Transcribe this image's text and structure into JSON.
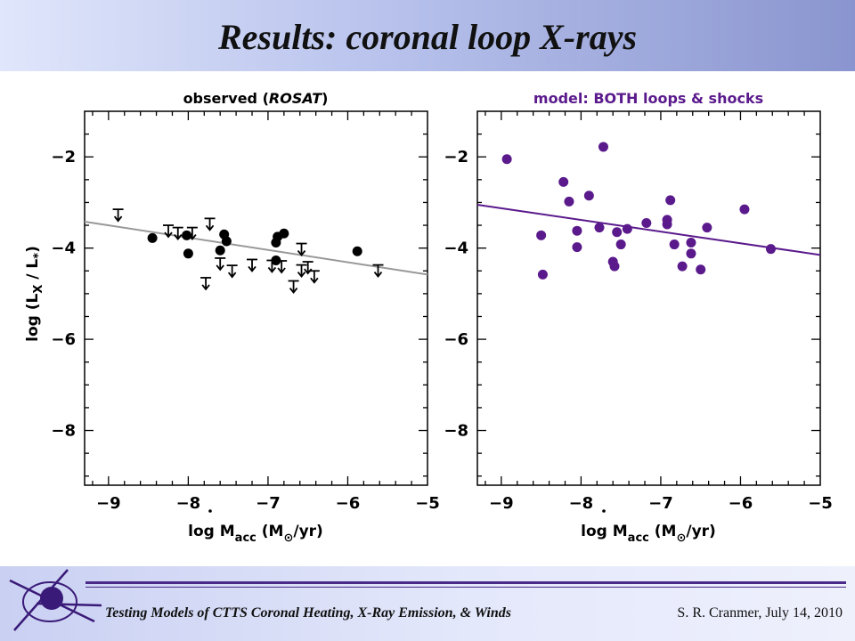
{
  "slide": {
    "title": "Results:  coronal loop X-rays",
    "footer_left": "Testing Models of CTTS Coronal Heating, X-Ray Emission, & Winds",
    "footer_right": "S. R. Cranmer, July 14, 2010",
    "logo_icon": "star-burst-logo-icon"
  },
  "chart_data": [
    {
      "type": "scatter",
      "title": "observed (ROSAT)",
      "title_main": "observed (",
      "title_italic": "ROSAT",
      "title_close": ")",
      "xlabel": "log Ṁacc (M⊙/yr)",
      "ylabel": "log (LX / L*)",
      "xlim": [
        -9.3,
        -5
      ],
      "ylim": [
        -9.2,
        -1
      ],
      "xticks": [
        -9,
        -8,
        -7,
        -6,
        -5
      ],
      "yticks": [
        -8,
        -6,
        -4,
        -2
      ],
      "xtick_labels": [
        "−9",
        "−8",
        "−7",
        "−6",
        "−5"
      ],
      "ytick_labels": [
        "−8",
        "−6",
        "−4",
        "−2"
      ],
      "color": "#000000",
      "fit_color": "#999999",
      "fit_line": {
        "x": [
          -9.3,
          -5
        ],
        "y": [
          -3.42,
          -4.58
        ]
      },
      "points": [
        {
          "x": -8.45,
          "y": -3.78
        },
        {
          "x": -8.02,
          "y": -3.72
        },
        {
          "x": -8.0,
          "y": -4.12
        },
        {
          "x": -7.55,
          "y": -3.7
        },
        {
          "x": -7.52,
          "y": -3.85
        },
        {
          "x": -7.6,
          "y": -4.05
        },
        {
          "x": -6.88,
          "y": -3.75
        },
        {
          "x": -6.9,
          "y": -3.88
        },
        {
          "x": -6.8,
          "y": -3.68
        },
        {
          "x": -6.9,
          "y": -4.27
        },
        {
          "x": -5.88,
          "y": -4.07
        }
      ],
      "upper_limits": [
        {
          "x": -8.88,
          "y": -3.15
        },
        {
          "x": -8.25,
          "y": -3.5
        },
        {
          "x": -8.13,
          "y": -3.55
        },
        {
          "x": -7.95,
          "y": -3.55
        },
        {
          "x": -7.73,
          "y": -3.35
        },
        {
          "x": -7.78,
          "y": -4.65
        },
        {
          "x": -7.6,
          "y": -4.22
        },
        {
          "x": -7.45,
          "y": -4.38
        },
        {
          "x": -7.2,
          "y": -4.25
        },
        {
          "x": -6.95,
          "y": -4.27
        },
        {
          "x": -6.83,
          "y": -4.28
        },
        {
          "x": -6.68,
          "y": -4.72
        },
        {
          "x": -6.58,
          "y": -3.9
        },
        {
          "x": -6.5,
          "y": -4.3
        },
        {
          "x": -6.58,
          "y": -4.37
        },
        {
          "x": -6.42,
          "y": -4.5
        },
        {
          "x": -5.62,
          "y": -4.37
        }
      ]
    },
    {
      "type": "scatter",
      "title": "model: BOTH loops & shocks",
      "xlabel": "log Ṁacc (M⊙/yr)",
      "ylabel": "",
      "xlim": [
        -9.3,
        -5
      ],
      "ylim": [
        -9.2,
        -1
      ],
      "xticks": [
        -9,
        -8,
        -7,
        -6,
        -5
      ],
      "yticks": [
        -8,
        -6,
        -4,
        -2
      ],
      "xtick_labels": [
        "−9",
        "−8",
        "−7",
        "−6",
        "−5"
      ],
      "ytick_labels": [
        "−8",
        "−6",
        "−4",
        "−2"
      ],
      "color": "#5a1a8c",
      "fit_color": "#5a1a8c",
      "fit_line": {
        "x": [
          -9.3,
          -5
        ],
        "y": [
          -3.05,
          -4.15
        ]
      },
      "points": [
        {
          "x": -8.93,
          "y": -2.05
        },
        {
          "x": -8.5,
          "y": -3.72
        },
        {
          "x": -8.48,
          "y": -4.58
        },
        {
          "x": -8.22,
          "y": -2.55
        },
        {
          "x": -8.15,
          "y": -2.98
        },
        {
          "x": -8.05,
          "y": -3.62
        },
        {
          "x": -8.05,
          "y": -3.98
        },
        {
          "x": -7.9,
          "y": -2.85
        },
        {
          "x": -7.72,
          "y": -1.78
        },
        {
          "x": -7.77,
          "y": -3.55
        },
        {
          "x": -7.6,
          "y": -4.3
        },
        {
          "x": -7.58,
          "y": -4.4
        },
        {
          "x": -7.55,
          "y": -3.65
        },
        {
          "x": -7.5,
          "y": -3.92
        },
        {
          "x": -7.42,
          "y": -3.58
        },
        {
          "x": -7.18,
          "y": -3.45
        },
        {
          "x": -6.92,
          "y": -3.38
        },
        {
          "x": -6.92,
          "y": -3.48
        },
        {
          "x": -6.88,
          "y": -2.95
        },
        {
          "x": -6.83,
          "y": -3.92
        },
        {
          "x": -6.73,
          "y": -4.4
        },
        {
          "x": -6.62,
          "y": -3.88
        },
        {
          "x": -6.62,
          "y": -4.12
        },
        {
          "x": -6.5,
          "y": -4.47
        },
        {
          "x": -6.42,
          "y": -3.55
        },
        {
          "x": -5.95,
          "y": -3.15
        },
        {
          "x": -5.62,
          "y": -4.02
        }
      ]
    }
  ]
}
